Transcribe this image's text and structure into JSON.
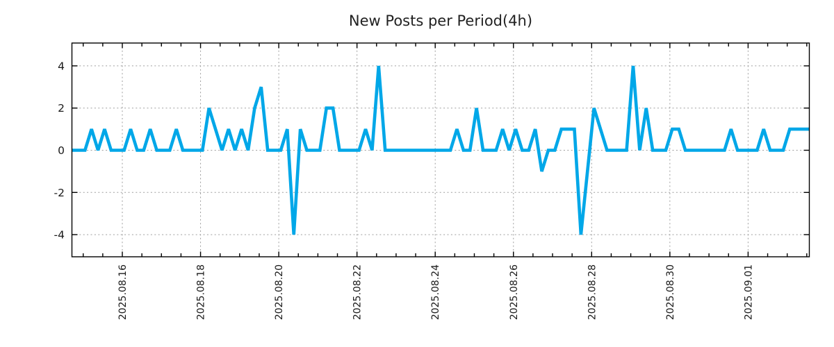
{
  "title": "New Posts per Period(4h)",
  "chart_data": {
    "type": "line",
    "title": "New Posts per Period(4h)",
    "xlabel": "",
    "ylabel": "",
    "x_tick_labels": [
      "2025.08.16",
      "2025.08.18",
      "2025.08.20",
      "2025.08.22",
      "2025.08.24",
      "2025.08.26",
      "2025.08.28",
      "2025.08.30",
      "2025.09.01"
    ],
    "y_ticks": [
      4,
      2,
      0,
      -2,
      -4
    ],
    "ylim": [
      -5.1,
      5.1
    ],
    "grid": true,
    "legend": false,
    "period_hours": 4,
    "x_minor_ticks_per_major": 4,
    "line_color": "#00a7e8",
    "grid_color": "#9e9e9e",
    "frame_color": "#000000",
    "background_color": "#ffffff",
    "values": [
      0,
      0,
      0,
      1,
      0,
      1,
      0,
      0,
      0,
      1,
      0,
      0,
      1,
      0,
      0,
      0,
      1,
      0,
      0,
      0,
      0,
      2,
      1,
      0,
      1,
      0,
      1,
      0,
      2,
      3,
      0,
      0,
      0,
      1,
      -4,
      1,
      0,
      0,
      0,
      2,
      2,
      0,
      0,
      0,
      0,
      1,
      0,
      4,
      0,
      0,
      0,
      0,
      0,
      0,
      0,
      0,
      0,
      0,
      0,
      1,
      0,
      0,
      2,
      0,
      0,
      0,
      1,
      0,
      1,
      0,
      0,
      1,
      -1,
      0,
      0,
      1,
      1,
      1,
      -4,
      -1,
      2,
      1,
      0,
      0,
      0,
      0,
      4,
      0,
      2,
      0,
      0,
      0,
      1,
      1,
      0,
      0,
      0,
      0,
      0,
      0,
      0,
      1,
      0,
      0,
      0,
      0,
      1,
      0,
      0,
      0,
      1,
      1,
      1,
      1
    ]
  }
}
